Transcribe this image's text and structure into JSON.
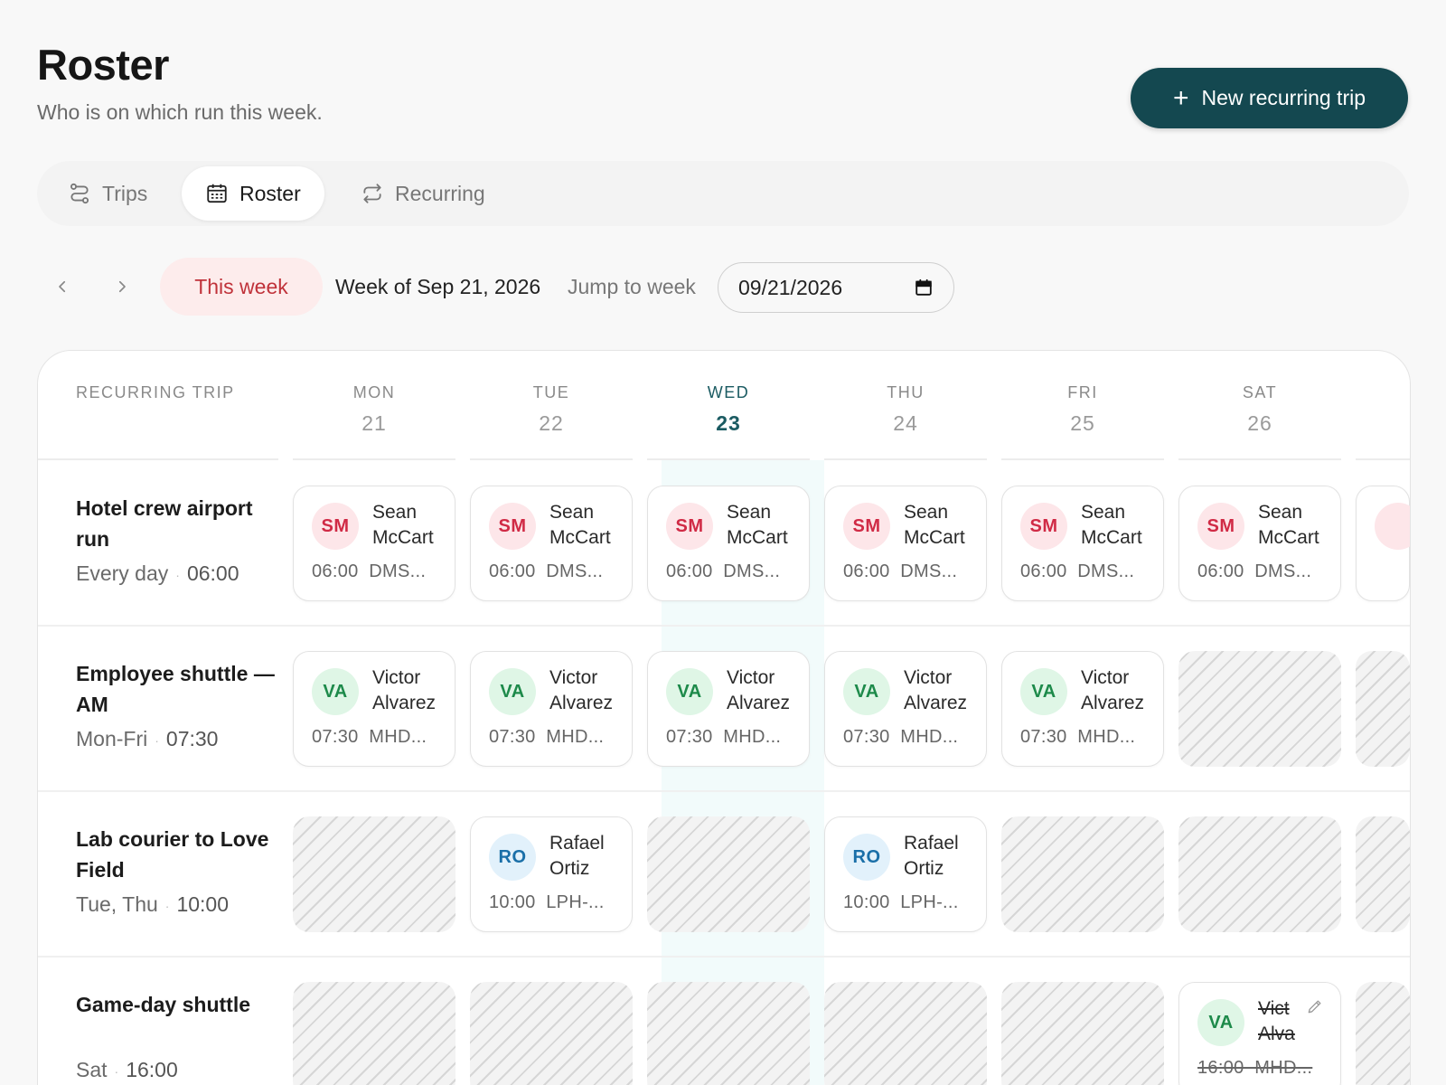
{
  "header": {
    "title": "Roster",
    "subtitle": "Who is on which run this week.",
    "new_trip_label": "New recurring trip"
  },
  "tabs": [
    {
      "label": "Trips",
      "icon": "route-icon",
      "active": false
    },
    {
      "label": "Roster",
      "icon": "calendar-icon",
      "active": true
    },
    {
      "label": "Recurring",
      "icon": "repeat-icon",
      "active": false
    }
  ],
  "week_nav": {
    "this_week_label": "This week",
    "week_of": "Week of Sep 21, 2026",
    "jump_label": "Jump to week",
    "date_value": "09/21/2026"
  },
  "grid": {
    "trip_header": "RECURRING TRIP",
    "days": [
      {
        "name": "MON",
        "num": "21"
      },
      {
        "name": "TUE",
        "num": "22"
      },
      {
        "name": "WED",
        "num": "23",
        "today": true
      },
      {
        "name": "THU",
        "num": "24"
      },
      {
        "name": "FRI",
        "num": "25"
      },
      {
        "name": "SAT",
        "num": "26"
      }
    ],
    "rows": [
      {
        "name": "Hotel crew airport run",
        "days_label": "Every day",
        "time": "06:00",
        "cells": [
          {
            "initials": "SM",
            "first": "Sean",
            "last": "McCart",
            "meta": "06:00  DMS..."
          },
          {
            "initials": "SM",
            "first": "Sean",
            "last": "McCart",
            "meta": "06:00  DMS..."
          },
          {
            "initials": "SM",
            "first": "Sean",
            "last": "McCart",
            "meta": "06:00  DMS..."
          },
          {
            "initials": "SM",
            "first": "Sean",
            "last": "McCart",
            "meta": "06:00  DMS..."
          },
          {
            "initials": "SM",
            "first": "Sean",
            "last": "McCart",
            "meta": "06:00  DMS..."
          },
          {
            "initials": "SM",
            "first": "Sean",
            "last": "McCart",
            "meta": "06:00  DMS..."
          }
        ]
      },
      {
        "name": "Employee shuttle — AM",
        "days_label": "Mon-Fri",
        "time": "07:30",
        "cells": [
          {
            "initials": "VA",
            "first": "Victor",
            "last": "Alvarez",
            "meta": "07:30  MHD..."
          },
          {
            "initials": "VA",
            "first": "Victor",
            "last": "Alvarez",
            "meta": "07:30  MHD..."
          },
          {
            "initials": "VA",
            "first": "Victor",
            "last": "Alvarez",
            "meta": "07:30  MHD..."
          },
          {
            "initials": "VA",
            "first": "Victor",
            "last": "Alvarez",
            "meta": "07:30  MHD..."
          },
          {
            "initials": "VA",
            "first": "Victor",
            "last": "Alvarez",
            "meta": "07:30  MHD..."
          }
        ]
      },
      {
        "name": "Lab courier to Love Field",
        "days_label": "Tue, Thu",
        "time": "10:00",
        "cells": [
          {
            "initials": "RO",
            "first": "Rafael",
            "last": "Ortiz",
            "meta": "10:00  LPH-..."
          },
          {
            "initials": "RO",
            "first": "Rafael",
            "last": "Ortiz",
            "meta": "10:00  LPH-..."
          }
        ]
      },
      {
        "name": "Game-day shuttle",
        "days_label": "Sat",
        "time": "16:00",
        "cells": [
          {
            "initials": "VA",
            "first": "Vict",
            "last": "Alva",
            "meta": "16:00  MHD..."
          }
        ]
      }
    ]
  },
  "colors": {
    "primary": "#144850",
    "today": "#1b5b62",
    "this_week_bg": "#fdecec",
    "this_week_text": "#c0323a"
  }
}
